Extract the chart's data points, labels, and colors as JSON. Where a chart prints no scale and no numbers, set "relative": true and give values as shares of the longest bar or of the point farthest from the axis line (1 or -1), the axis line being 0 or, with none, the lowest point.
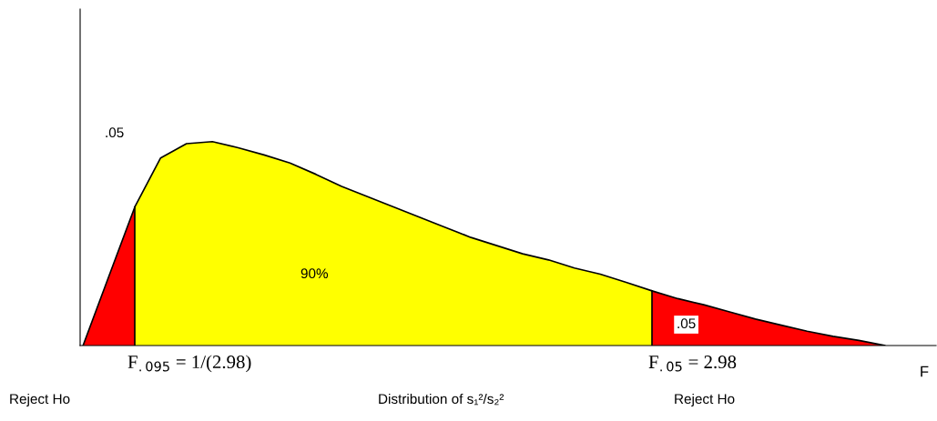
{
  "chart_data": {
    "type": "area",
    "relative": true,
    "xlabel": "F",
    "categories": [
      null,
      null,
      null,
      null,
      null,
      null,
      null,
      null,
      null,
      null,
      null,
      null,
      null,
      null,
      null,
      null,
      null,
      null,
      null,
      null,
      null,
      null,
      null,
      null,
      null,
      null,
      null,
      null,
      null,
      null,
      null,
      null
    ],
    "series": [
      {
        "color": "#ff0000",
        "values": [
          0,
          0.34,
          0.679,
          null,
          null,
          null,
          null,
          null,
          null,
          null,
          null,
          null,
          null,
          null,
          null,
          null,
          null,
          null,
          null,
          null,
          null,
          null,
          null,
          null,
          null,
          null,
          null,
          null,
          null,
          null,
          null,
          null
        ]
      },
      {
        "color": "#ffff00",
        "values": [
          null,
          null,
          0.679,
          0.92,
          0.99,
          1,
          0.97,
          0.935,
          0.895,
          0.84,
          0.78,
          0.73,
          0.68,
          0.63,
          0.58,
          0.53,
          0.49,
          0.45,
          0.42,
          0.38,
          0.35,
          0.31,
          0.268,
          null,
          null,
          null,
          null,
          null,
          null,
          null,
          null,
          null
        ]
      },
      {
        "color": "#ff0000",
        "values": [
          null,
          null,
          null,
          null,
          null,
          null,
          null,
          null,
          null,
          null,
          null,
          null,
          null,
          null,
          null,
          null,
          null,
          null,
          null,
          null,
          null,
          null,
          0.268,
          0.23,
          0.2,
          0.165,
          0.13,
          0.1,
          0.07,
          0.045,
          0.025,
          0
        ]
      }
    ],
    "annotations": [
      ".05",
      "90%",
      ".05",
      "F$_{.095}$ = 1/(2.98)",
      "F$_{.05}$ = 2.98",
      "Reject Ho",
      "Distribution of s₁²/s₂²",
      "Reject Ho"
    ],
    "grid": false
  }
}
